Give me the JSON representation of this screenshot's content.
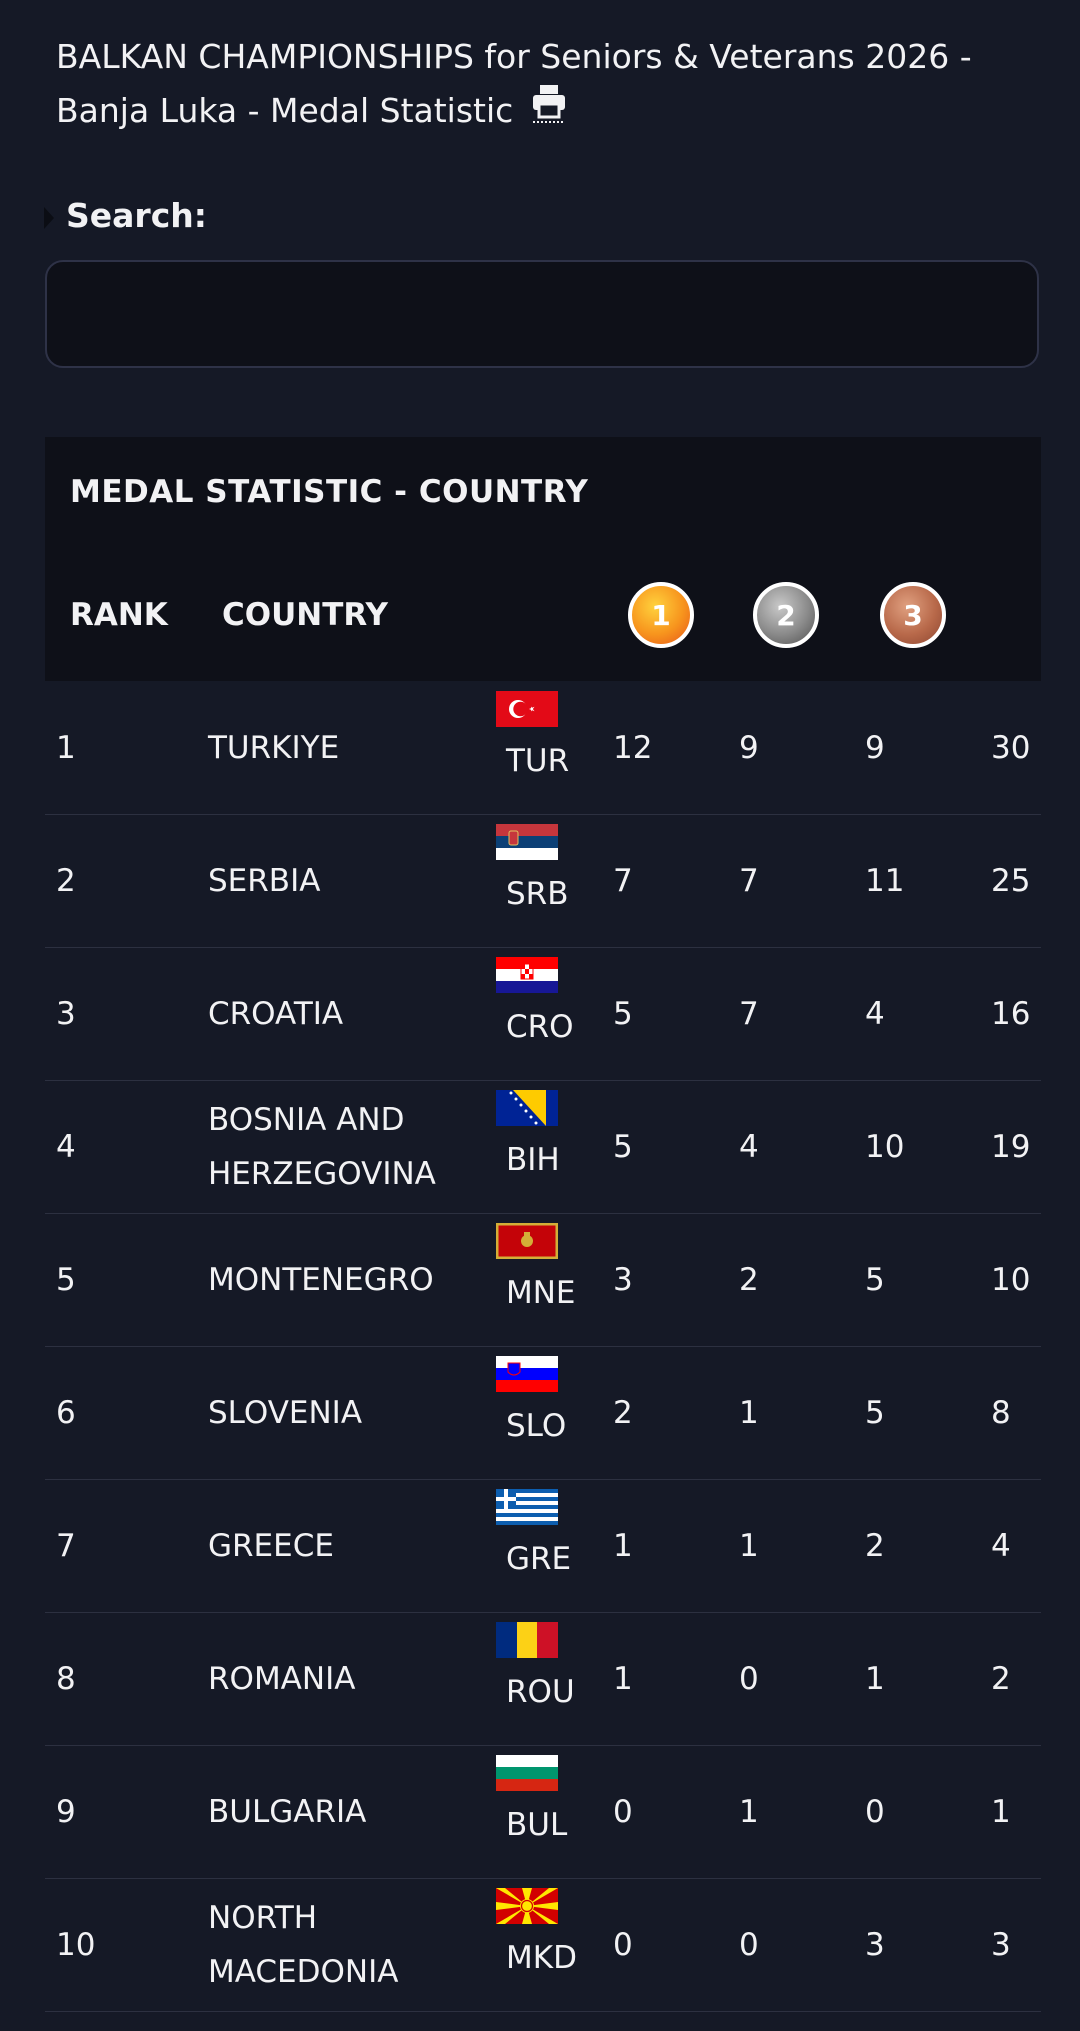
{
  "header": {
    "title": "BALKAN CHAMPIONSHIPS for Seniors & Veterans 2026 - Banja Luka - Medal Statistic",
    "print_icon": "printer-icon"
  },
  "search": {
    "label": "Search:",
    "value": ""
  },
  "table": {
    "title": "MEDAL STATISTIC - COUNTRY",
    "columns": {
      "rank": "RANK",
      "country": "COUNTRY",
      "gold": "1",
      "silver": "2",
      "bronze": "3"
    },
    "medal_colors": {
      "gold": "#f7941d",
      "silver": "#8a8a8a",
      "bronze": "#b8694a"
    },
    "rows": [
      {
        "rank": "1",
        "country": "TURKIYE",
        "code": "TUR",
        "gold": "12",
        "silver": "9",
        "bronze": "9",
        "total": "30"
      },
      {
        "rank": "2",
        "country": "SERBIA",
        "code": "SRB",
        "gold": "7",
        "silver": "7",
        "bronze": "11",
        "total": "25"
      },
      {
        "rank": "3",
        "country": "CROATIA",
        "code": "CRO",
        "gold": "5",
        "silver": "7",
        "bronze": "4",
        "total": "16"
      },
      {
        "rank": "4",
        "country": "BOSNIA AND HERZEGOVINA",
        "code": "BIH",
        "gold": "5",
        "silver": "4",
        "bronze": "10",
        "total": "19"
      },
      {
        "rank": "5",
        "country": "MONTENEGRO",
        "code": "MNE",
        "gold": "3",
        "silver": "2",
        "bronze": "5",
        "total": "10"
      },
      {
        "rank": "6",
        "country": "SLOVENIA",
        "code": "SLO",
        "gold": "2",
        "silver": "1",
        "bronze": "5",
        "total": "8"
      },
      {
        "rank": "7",
        "country": "GREECE",
        "code": "GRE",
        "gold": "1",
        "silver": "1",
        "bronze": "2",
        "total": "4"
      },
      {
        "rank": "8",
        "country": "ROMANIA",
        "code": "ROU",
        "gold": "1",
        "silver": "0",
        "bronze": "1",
        "total": "2"
      },
      {
        "rank": "9",
        "country": "BULGARIA",
        "code": "BUL",
        "gold": "0",
        "silver": "1",
        "bronze": "0",
        "total": "1"
      },
      {
        "rank": "10",
        "country": "NORTH MACEDONIA",
        "code": "MKD",
        "gold": "0",
        "silver": "0",
        "bronze": "3",
        "total": "3"
      }
    ]
  }
}
